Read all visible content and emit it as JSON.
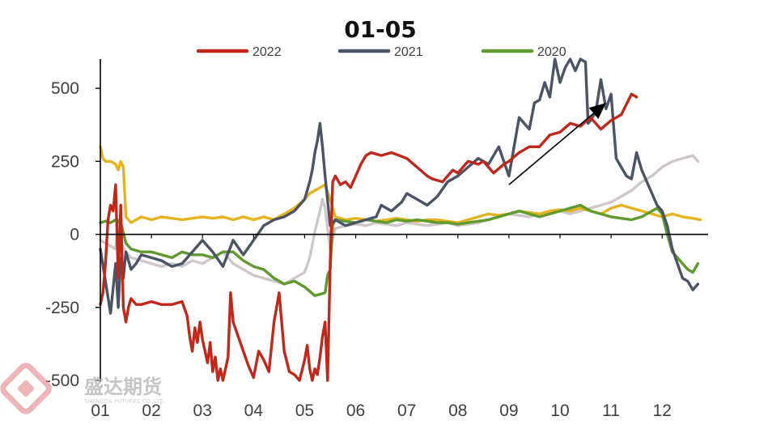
{
  "chart_data": {
    "type": "line",
    "title": "01-05",
    "xlabel": "",
    "ylabel": "",
    "ylim": [
      -500,
      600
    ],
    "yticks": [
      "500",
      "250",
      "0",
      "-250",
      "-500"
    ],
    "xticks": [
      "01",
      "02",
      "03",
      "04",
      "05",
      "06",
      "07",
      "08",
      "09",
      "10",
      "11",
      "12"
    ],
    "legend_position": "top",
    "colors": {
      "2022": "#c0281c",
      "2021": "#4a5466",
      "2020": "#5e9a2e",
      "gold": "#e6b31e",
      "silver": "#cfc6c8"
    },
    "series": [
      {
        "name": "2022",
        "color": "#c0281c",
        "x": [
          1.0,
          1.05,
          1.1,
          1.15,
          1.2,
          1.25,
          1.3,
          1.35,
          1.4,
          1.45,
          1.5,
          1.55,
          1.6,
          1.7,
          1.8,
          2.0,
          2.2,
          2.4,
          2.6,
          2.7,
          2.75,
          2.8,
          2.85,
          2.9,
          2.95,
          3.0,
          3.1,
          3.15,
          3.2,
          3.25,
          3.3,
          3.35,
          3.4,
          3.5,
          3.55,
          3.6,
          3.7,
          3.8,
          3.9,
          4.0,
          4.1,
          4.2,
          4.3,
          4.4,
          4.5,
          4.6,
          4.7,
          4.8,
          4.9,
          5.0,
          5.05,
          5.1,
          5.15,
          5.2,
          5.25,
          5.3,
          5.35,
          5.4,
          5.45,
          5.5,
          5.55,
          5.6,
          5.7,
          5.8,
          5.9,
          6.0,
          6.1,
          6.2,
          6.3,
          6.5,
          6.7,
          7.0,
          7.2,
          7.4,
          7.5,
          7.7,
          7.9,
          8.0,
          8.2,
          8.4,
          8.5,
          8.7,
          8.9,
          9.0,
          9.2,
          9.4,
          9.6,
          9.8,
          10.0,
          10.2,
          10.4,
          10.6,
          10.8,
          11.0,
          11.2,
          11.4,
          11.5
        ],
        "values": [
          -240,
          -200,
          -100,
          50,
          100,
          80,
          170,
          -150,
          100,
          -250,
          -300,
          -250,
          -220,
          -240,
          -240,
          -230,
          -240,
          -240,
          -230,
          -280,
          -350,
          -400,
          -320,
          -370,
          -300,
          -360,
          -440,
          -370,
          -470,
          -420,
          -500,
          -460,
          -500,
          -420,
          -200,
          -300,
          -350,
          -400,
          -450,
          -490,
          -400,
          -430,
          -470,
          -300,
          -200,
          -400,
          -470,
          -480,
          -500,
          -430,
          -380,
          -460,
          -500,
          -460,
          -480,
          -420,
          -350,
          -300,
          -500,
          -100,
          180,
          200,
          170,
          180,
          160,
          200,
          240,
          270,
          280,
          270,
          280,
          260,
          230,
          200,
          190,
          180,
          220,
          210,
          250,
          240,
          250,
          210,
          240,
          250,
          280,
          300,
          300,
          340,
          350,
          380,
          370,
          400,
          360,
          390,
          410,
          480,
          470
        ]
      },
      {
        "name": "2021",
        "color": "#4a5466",
        "x": [
          1.0,
          1.1,
          1.2,
          1.3,
          1.35,
          1.4,
          1.45,
          1.5,
          1.6,
          1.7,
          1.8,
          2.0,
          2.2,
          2.4,
          2.6,
          2.8,
          3.0,
          3.2,
          3.4,
          3.6,
          3.8,
          4.0,
          4.2,
          4.4,
          4.6,
          4.8,
          5.0,
          5.1,
          5.15,
          5.2,
          5.25,
          5.3,
          5.35,
          5.4,
          5.5,
          5.6,
          5.8,
          6.0,
          6.2,
          6.4,
          6.5,
          6.7,
          6.9,
          7.0,
          7.2,
          7.4,
          7.6,
          7.8,
          8.0,
          8.2,
          8.4,
          8.6,
          8.8,
          9.0,
          9.2,
          9.4,
          9.5,
          9.6,
          9.7,
          9.8,
          9.9,
          10.0,
          10.1,
          10.2,
          10.3,
          10.4,
          10.5,
          10.55,
          10.6,
          10.7,
          10.8,
          10.9,
          11.0,
          11.1,
          11.2,
          11.3,
          11.4,
          11.5,
          11.6,
          11.7,
          11.8,
          11.9,
          12.0,
          12.1,
          12.2,
          12.3,
          12.4,
          12.5,
          12.6,
          12.7
        ],
        "values": [
          -50,
          -160,
          -270,
          -100,
          -250,
          -80,
          -150,
          -60,
          -120,
          -100,
          -70,
          -80,
          -90,
          -110,
          -100,
          -60,
          -20,
          -60,
          -110,
          -20,
          -70,
          -20,
          30,
          50,
          60,
          80,
          120,
          180,
          220,
          280,
          320,
          380,
          300,
          200,
          30,
          50,
          30,
          40,
          50,
          60,
          100,
          80,
          110,
          140,
          120,
          100,
          130,
          180,
          200,
          230,
          260,
          240,
          300,
          200,
          400,
          360,
          450,
          460,
          520,
          470,
          600,
          520,
          570,
          600,
          560,
          600,
          590,
          380,
          390,
          420,
          530,
          430,
          480,
          260,
          230,
          200,
          190,
          280,
          220,
          180,
          140,
          100,
          80,
          30,
          -50,
          -100,
          -150,
          -160,
          -190,
          -170
        ]
      },
      {
        "name": "2020",
        "color": "#5e9a2e",
        "x": [
          1.0,
          1.1,
          1.2,
          1.3,
          1.4,
          1.5,
          1.6,
          1.8,
          2.0,
          2.2,
          2.4,
          2.6,
          2.8,
          3.0,
          3.2,
          3.4,
          3.6,
          3.8,
          4.0,
          4.2,
          4.4,
          4.6,
          4.8,
          5.0,
          5.2,
          5.4,
          5.45,
          5.5,
          5.55,
          5.6,
          5.8,
          6.0,
          6.2,
          6.4,
          6.6,
          6.8,
          7.0,
          7.2,
          7.4,
          7.6,
          7.8,
          8.0,
          8.2,
          8.4,
          8.6,
          8.8,
          9.0,
          9.2,
          9.4,
          9.6,
          9.8,
          10.0,
          10.2,
          10.4,
          10.6,
          10.8,
          11.0,
          11.2,
          11.4,
          11.6,
          11.8,
          11.9,
          12.0,
          12.1,
          12.2,
          12.3,
          12.4,
          12.5,
          12.6,
          12.7
        ],
        "values": [
          40,
          45,
          40,
          50,
          40,
          -30,
          -50,
          -60,
          -60,
          -70,
          -80,
          -60,
          -70,
          -70,
          -80,
          -60,
          -60,
          -90,
          -110,
          -120,
          -150,
          -170,
          -160,
          -180,
          -210,
          -200,
          -140,
          -120,
          30,
          50,
          45,
          40,
          50,
          45,
          40,
          50,
          45,
          50,
          45,
          40,
          40,
          35,
          40,
          45,
          50,
          60,
          70,
          80,
          70,
          60,
          70,
          80,
          90,
          100,
          80,
          70,
          60,
          55,
          50,
          60,
          80,
          90,
          70,
          0,
          -60,
          -80,
          -100,
          -120,
          -130,
          -100
        ]
      },
      {
        "name": "",
        "color": "#e6b31e",
        "x": [
          1.0,
          1.05,
          1.1,
          1.2,
          1.3,
          1.35,
          1.4,
          1.45,
          1.5,
          1.6,
          1.8,
          2.0,
          2.2,
          2.4,
          2.6,
          2.8,
          3.0,
          3.2,
          3.4,
          3.6,
          3.8,
          4.0,
          4.2,
          4.4,
          4.6,
          4.8,
          5.0,
          5.1,
          5.2,
          5.3,
          5.4,
          5.5,
          5.6,
          5.8,
          6.0,
          6.2,
          6.4,
          6.6,
          6.8,
          7.0,
          7.2,
          7.4,
          7.6,
          7.8,
          8.0,
          8.2,
          8.4,
          8.6,
          8.8,
          9.0,
          9.2,
          9.4,
          9.6,
          9.8,
          10.0,
          10.2,
          10.4,
          10.6,
          10.8,
          11.0,
          11.2,
          11.4,
          11.6,
          11.8,
          12.0,
          12.2,
          12.4,
          12.6,
          12.75
        ],
        "values": [
          300,
          260,
          250,
          250,
          240,
          220,
          250,
          230,
          60,
          40,
          60,
          50,
          60,
          55,
          50,
          55,
          60,
          55,
          60,
          50,
          60,
          50,
          60,
          50,
          70,
          90,
          120,
          140,
          150,
          160,
          170,
          120,
          60,
          50,
          55,
          50,
          45,
          50,
          55,
          50,
          45,
          50,
          50,
          45,
          40,
          50,
          60,
          70,
          65,
          70,
          80,
          75,
          70,
          80,
          85,
          80,
          90,
          80,
          70,
          90,
          100,
          90,
          80,
          70,
          60,
          70,
          60,
          55,
          50
        ]
      },
      {
        "name": "",
        "color": "#cfc6c8",
        "x": [
          1.0,
          1.1,
          1.2,
          1.3,
          1.35,
          1.4,
          1.5,
          1.6,
          1.8,
          2.0,
          2.2,
          2.4,
          2.6,
          2.8,
          3.0,
          3.2,
          3.4,
          3.6,
          3.8,
          4.0,
          4.2,
          4.4,
          4.6,
          4.8,
          5.0,
          5.1,
          5.2,
          5.3,
          5.35,
          5.4,
          5.5,
          5.6,
          5.8,
          6.0,
          6.2,
          6.4,
          6.6,
          6.8,
          7.0,
          7.2,
          7.4,
          7.6,
          7.8,
          8.0,
          8.2,
          8.4,
          8.6,
          8.8,
          9.0,
          9.2,
          9.4,
          9.6,
          9.8,
          10.0,
          10.2,
          10.4,
          10.6,
          10.8,
          11.0,
          11.2,
          11.4,
          11.6,
          11.8,
          12.0,
          12.2,
          12.4,
          12.6,
          12.7
        ],
        "values": [
          -20,
          -30,
          -40,
          -50,
          50,
          -30,
          -60,
          -80,
          -90,
          -100,
          -110,
          -100,
          -110,
          -90,
          -100,
          -80,
          -60,
          -100,
          -120,
          -140,
          -150,
          -160,
          -170,
          -150,
          -130,
          -80,
          10,
          80,
          120,
          90,
          -50,
          20,
          30,
          35,
          30,
          40,
          35,
          30,
          40,
          35,
          30,
          35,
          40,
          30,
          35,
          40,
          50,
          60,
          70,
          65,
          60,
          70,
          75,
          80,
          70,
          80,
          90,
          100,
          110,
          130,
          150,
          180,
          200,
          230,
          250,
          260,
          270,
          250
        ]
      }
    ],
    "annotation": {
      "type": "arrow",
      "from": [
        9.0,
        170
      ],
      "to": [
        10.9,
        450
      ]
    },
    "watermark": {
      "text": "盛达期货",
      "sub": "SHENGDA FUTURES CO.,LTD."
    }
  }
}
